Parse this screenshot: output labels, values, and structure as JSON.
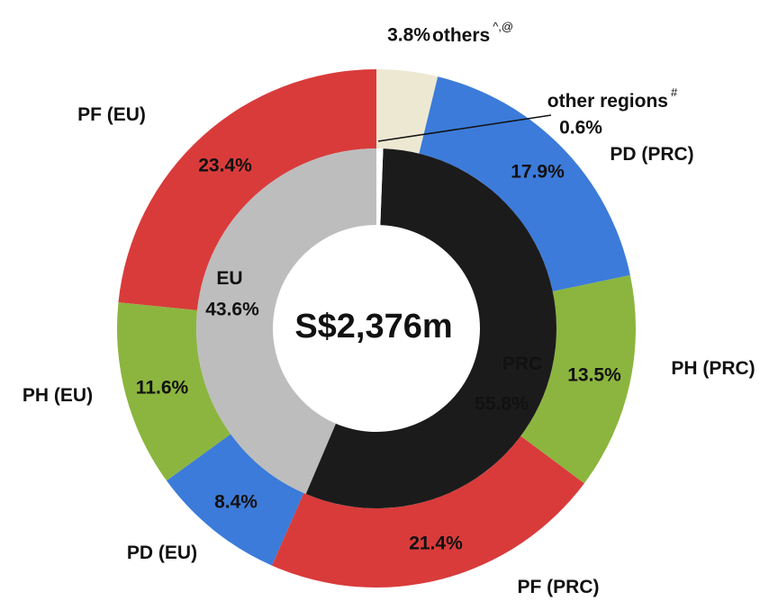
{
  "chart_data": {
    "type": "nested-donut",
    "center_label": "S$2,376m",
    "outer": {
      "categories": [
        "others",
        "PD (PRC)",
        "PH (PRC)",
        "PF (PRC)",
        "PD (EU)",
        "PH (EU)",
        "PF (EU)"
      ],
      "notes": [
        "^,@",
        null,
        null,
        null,
        null,
        null,
        null
      ],
      "values": [
        3.8,
        17.9,
        13.5,
        21.4,
        8.4,
        11.6,
        23.4
      ],
      "value_labels": [
        "3.8%",
        "17.9%",
        "13.5%",
        "21.4%",
        "8.4%",
        "11.6%",
        "23.4%"
      ],
      "colors": [
        "#ede8d2",
        "#3c7bd9",
        "#8cb53f",
        "#d93b3b",
        "#3c7bd9",
        "#8cb53f",
        "#d93b3b"
      ]
    },
    "inner": {
      "categories": [
        "other regions",
        "PRC",
        "EU"
      ],
      "notes": [
        "#",
        null,
        null
      ],
      "values": [
        0.6,
        55.8,
        43.6
      ],
      "value_labels": [
        "0.6%",
        "55.8%",
        "43.6%"
      ],
      "colors": [
        "#ffffff",
        "#1b1b1b",
        "#bdbdbd"
      ]
    }
  }
}
